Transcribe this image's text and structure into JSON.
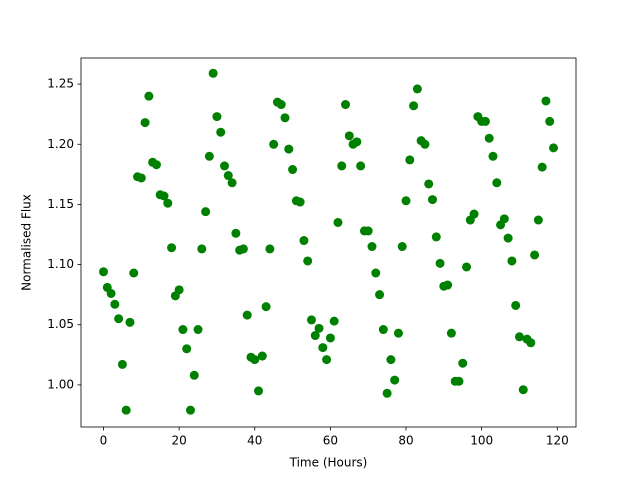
{
  "chart_data": {
    "type": "scatter",
    "xlabel": "Time (Hours)",
    "ylabel": "Normalised Flux",
    "x": [
      0,
      1,
      2,
      3,
      4,
      5,
      6,
      7,
      8,
      9,
      10,
      11,
      12,
      13,
      14,
      15,
      16,
      17,
      18,
      19,
      20,
      21,
      22,
      23,
      24,
      25,
      26,
      27,
      28,
      29,
      30,
      31,
      32,
      33,
      34,
      35,
      36,
      37,
      38,
      39,
      40,
      41,
      42,
      43,
      44,
      45,
      46,
      47,
      48,
      49,
      50,
      51,
      52,
      53,
      54,
      55,
      56,
      57,
      58,
      59,
      60,
      61,
      62,
      63,
      64,
      65,
      66,
      67,
      68,
      69,
      70,
      71,
      72,
      73,
      74,
      75,
      76,
      77,
      78,
      79,
      80,
      81,
      82,
      83,
      84,
      85,
      86,
      87,
      88,
      89,
      90,
      91,
      92,
      93,
      94,
      95,
      96,
      97,
      98,
      99,
      100,
      101,
      102,
      103,
      104,
      105,
      106,
      107,
      108,
      109,
      110,
      111,
      112,
      113,
      114,
      115,
      116,
      117,
      118,
      119
    ],
    "values": [
      1.094,
      1.081,
      1.076,
      1.067,
      1.055,
      1.017,
      0.979,
      1.052,
      1.093,
      1.173,
      1.172,
      1.218,
      1.24,
      1.185,
      1.183,
      1.158,
      1.157,
      1.151,
      1.114,
      1.074,
      1.079,
      1.046,
      1.03,
      0.979,
      1.008,
      1.046,
      1.113,
      1.144,
      1.19,
      1.259,
      1.223,
      1.21,
      1.182,
      1.174,
      1.168,
      1.126,
      1.112,
      1.113,
      1.058,
      1.023,
      1.021,
      0.995,
      1.024,
      1.065,
      1.113,
      1.2,
      1.235,
      1.233,
      1.222,
      1.196,
      1.179,
      1.153,
      1.152,
      1.12,
      1.103,
      1.054,
      1.041,
      1.047,
      1.031,
      1.021,
      1.039,
      1.053,
      1.135,
      1.182,
      1.233,
      1.207,
      1.2,
      1.202,
      1.182,
      1.128,
      1.128,
      1.115,
      1.093,
      1.075,
      1.046,
      0.993,
      1.021,
      1.004,
      1.043,
      1.115,
      1.153,
      1.187,
      1.232,
      1.246,
      1.203,
      1.2,
      1.167,
      1.154,
      1.123,
      1.101,
      1.082,
      1.083,
      1.043,
      1.003,
      1.003,
      1.018,
      1.098,
      1.137,
      1.142,
      1.223,
      1.219,
      1.219,
      1.205,
      1.19,
      1.168,
      1.133,
      1.138,
      1.122,
      1.103,
      1.066,
      1.04,
      0.996,
      1.038,
      1.035,
      1.108,
      1.137,
      1.181,
      1.236,
      1.219,
      1.197
    ],
    "color": "#008000",
    "xlim": [
      -5.95,
      124.95
    ],
    "xticks": [
      0,
      20,
      40,
      60,
      80,
      100,
      120
    ],
    "ylim": [
      0.965,
      1.2717
    ],
    "yticks": [
      {
        "value": 1.0,
        "label": "1.00"
      },
      {
        "value": 1.05,
        "label": "1.05"
      },
      {
        "value": 1.1,
        "label": "1.10"
      },
      {
        "value": 1.15,
        "label": "1.15"
      },
      {
        "value": 1.2,
        "label": "1.20"
      },
      {
        "value": 1.25,
        "label": "1.25"
      }
    ],
    "grid": false
  }
}
